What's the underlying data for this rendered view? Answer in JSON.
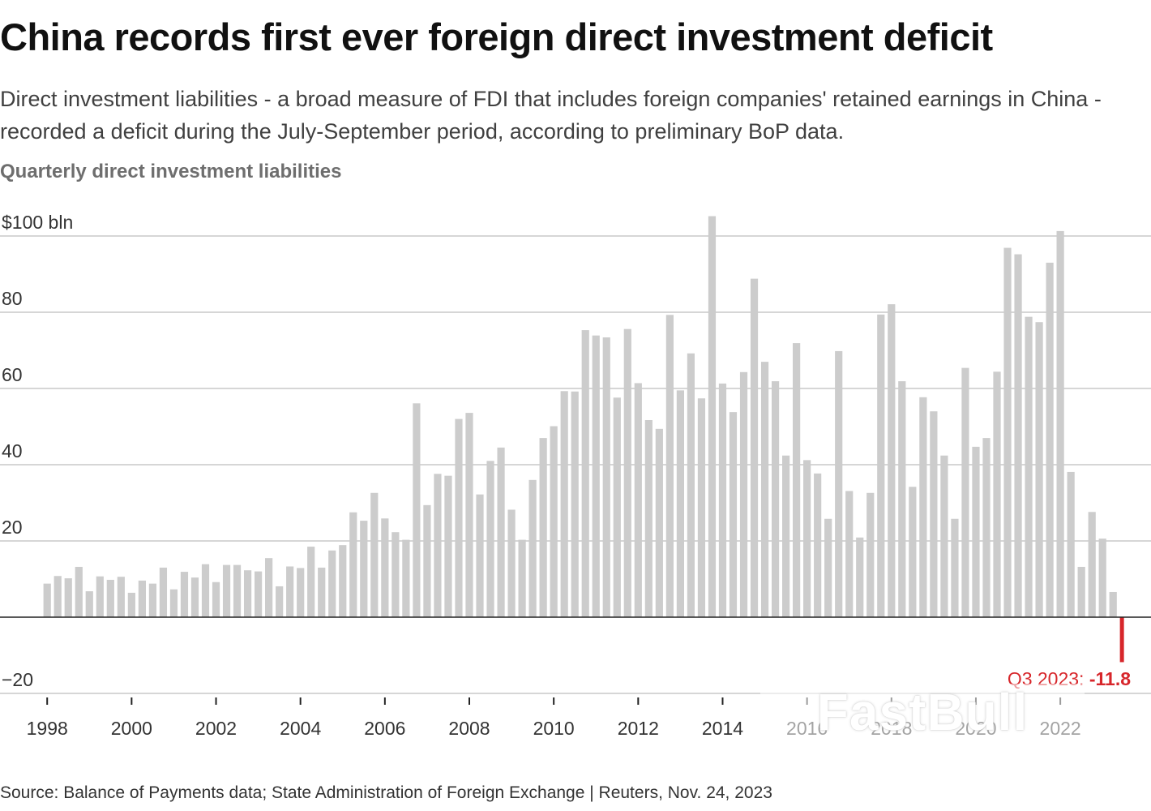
{
  "header": {
    "title": "China records first ever foreign direct investment deficit",
    "subtitle": "Direct investment liabilities - a broad measure of FDI that includes foreign companies' retained earnings in China - recorded a deficit during the July-September period, according to preliminary BoP data.",
    "chart_label": "Quarterly direct investment liabilities"
  },
  "footer": {
    "source": "Source: Balance of Payments data; State Administration of Foreign Exchange | Reuters, Nov. 24, 2023"
  },
  "watermark": {
    "text": "FastBull"
  },
  "colors": {
    "bar": "#cccccc",
    "highlight": "#d7262b",
    "grid": "#c8c8c8",
    "zero_line": "#222222",
    "text": "#222222"
  },
  "chart_data": {
    "type": "bar",
    "title": "Quarterly direct investment liabilities",
    "ylabel": "$ bln",
    "ylim": [
      -20,
      100
    ],
    "yticks": [
      {
        "value": 100,
        "label": "$100 bln"
      },
      {
        "value": 80,
        "label": "80"
      },
      {
        "value": 60,
        "label": "60"
      },
      {
        "value": 40,
        "label": "40"
      },
      {
        "value": 20,
        "label": "20"
      },
      {
        "value": -20,
        "label": "−20"
      }
    ],
    "xticks": [
      "1998",
      "2000",
      "2002",
      "2004",
      "2006",
      "2008",
      "2010",
      "2012",
      "2014",
      "2016",
      "2018",
      "2020",
      "2022"
    ],
    "start_year": 1998,
    "start_quarter": 1,
    "values": [
      8.8,
      10.8,
      10.2,
      13.2,
      6.8,
      10.7,
      9.8,
      10.6,
      6.4,
      9.6,
      8.8,
      13.0,
      7.3,
      11.9,
      10.4,
      13.9,
      9.2,
      13.7,
      13.7,
      12.3,
      12.0,
      15.5,
      8.1,
      13.3,
      12.9,
      18.5,
      13.0,
      17.5,
      18.9,
      27.5,
      25.3,
      32.6,
      25.9,
      22.3,
      20.3,
      56.1,
      29.4,
      37.6,
      37.1,
      52.0,
      53.6,
      32.2,
      41.0,
      44.5,
      28.2,
      20.3,
      36.0,
      47.0,
      50.1,
      59.3,
      59.2,
      75.3,
      73.9,
      73.4,
      57.6,
      75.6,
      61.4,
      51.7,
      49.4,
      79.3,
      59.5,
      69.2,
      57.4,
      105.2,
      61.3,
      53.8,
      64.3,
      88.8,
      67.0,
      61.9,
      42.4,
      71.9,
      41.2,
      37.7,
      25.8,
      69.8,
      33.1,
      20.9,
      32.6,
      79.4,
      82.1,
      61.9,
      34.2,
      57.7,
      54.0,
      42.4,
      25.8,
      65.4,
      44.7,
      47.0,
      64.4,
      96.9,
      95.2,
      78.8,
      77.4,
      93.0,
      101.3,
      38.1,
      13.2,
      27.6,
      20.6,
      6.6,
      -11.8
    ],
    "annotation": {
      "label": "Q3 2023: ",
      "value": "-11.8"
    }
  }
}
